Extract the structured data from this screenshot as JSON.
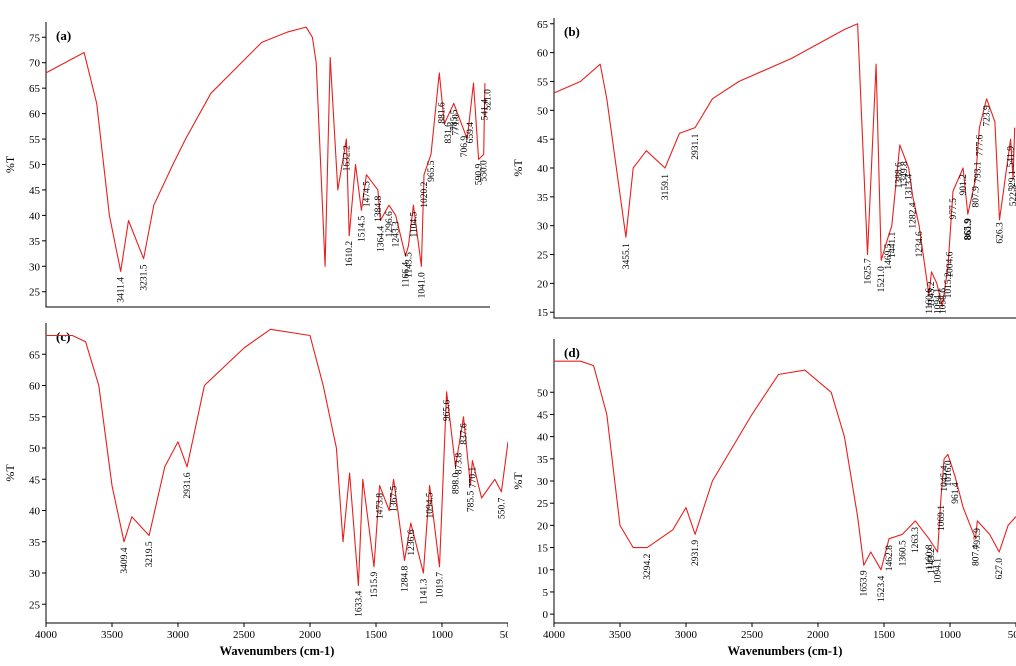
{
  "chart_data": [
    {
      "type": "line",
      "panel_label": "(a)",
      "ylabel": "%T",
      "xlabel": "",
      "xlim": [
        4000,
        500
      ],
      "ylim": [
        22,
        78
      ],
      "x_ticks": [],
      "y_ticks": [
        25,
        30,
        35,
        40,
        45,
        50,
        55,
        60,
        65,
        70,
        75
      ],
      "series": [
        {
          "x": [
            4000,
            3700,
            3600,
            3500,
            3411,
            3350,
            3231,
            3150,
            3000,
            2900,
            2700,
            2300,
            2100,
            1950,
            1900,
            1870,
            1800,
            1760,
            1700,
            1632,
            1610,
            1560,
            1514,
            1474,
            1384,
            1364,
            1296,
            1243,
            1166,
            1143,
            1104,
            1041,
            1020,
            965,
            900,
            860,
            785,
            680,
            630,
            590,
            550,
            540
          ],
          "y": [
            68,
            72,
            62,
            40,
            29,
            39,
            31.5,
            42,
            50,
            55,
            64,
            74,
            76,
            77,
            75,
            70,
            30,
            71,
            45,
            55,
            36,
            50,
            41,
            48,
            45,
            39,
            42,
            40,
            32,
            34,
            42,
            30,
            48,
            52,
            68,
            58,
            62,
            55,
            66,
            51,
            52,
            66
          ]
        }
      ],
      "peaks": [
        "3411.4",
        "3231.5",
        "1632.2",
        "1610.2",
        "1514.5",
        "1474.5",
        "1384.8",
        "1364.4",
        "1296.6",
        "1243.3",
        "1166.4",
        "1143.5",
        "1104.5",
        "1041.0",
        "1020.2",
        "965.5",
        "881.6",
        "831.6",
        "785.5",
        "771.0",
        "706.9",
        "659.4",
        "590.9",
        "550.0",
        "541.4",
        "521.0"
      ]
    },
    {
      "type": "line",
      "panel_label": "(b)",
      "ylabel": "%T",
      "xlabel": "",
      "xlim": [
        4000,
        500
      ],
      "ylim": [
        14,
        66
      ],
      "x_ticks": [],
      "y_ticks": [
        15,
        20,
        25,
        30,
        35,
        40,
        45,
        50,
        55,
        60,
        65
      ],
      "series": [
        {
          "x": [
            4000,
            3800,
            3650,
            3600,
            3455,
            3400,
            3300,
            3159,
            3050,
            2931,
            2800,
            2600,
            2200,
            1800,
            1700,
            1625,
            1560,
            1521,
            1469,
            1441,
            1380,
            1313,
            1282,
            1234,
            1160,
            1140,
            1100,
            1058,
            1015,
            977,
            901,
            865,
            807,
            777,
            723,
            660,
            625,
            541,
            522,
            510
          ],
          "y": [
            53,
            55,
            58,
            52,
            28,
            40,
            43,
            40,
            46,
            47,
            52,
            55,
            59,
            64,
            65,
            25,
            58,
            24,
            28,
            30,
            44,
            40,
            35,
            30,
            18,
            22,
            20,
            16,
            23,
            36,
            40,
            32,
            38,
            47,
            52,
            48,
            31,
            45,
            38,
            47
          ]
        }
      ],
      "peaks": [
        "3455.1",
        "3159.1",
        "2931.1",
        "1625.7",
        "1521.0",
        "1469.5",
        "1441.1",
        "1388.6",
        "1349.8",
        "1313.4",
        "1282.4",
        "1234.6",
        "1160.6",
        "1143.2",
        "1094.1",
        "1058.6",
        "1015.2",
        "1004.6",
        "977.5",
        "901.2",
        "865.9",
        "861.9",
        "807.9",
        "793.1",
        "777.6",
        "723.9",
        "626.3",
        "541.9",
        "522.3",
        "529.1"
      ]
    },
    {
      "type": "line",
      "panel_label": "(c)",
      "ylabel": "%T",
      "xlabel": "Wavenumbers (cm-1)",
      "xlim": [
        4000,
        500
      ],
      "ylim": [
        22,
        70
      ],
      "x_ticks": [
        4000,
        3500,
        3000,
        2500,
        2000,
        1500,
        1000,
        500
      ],
      "y_ticks": [
        25,
        30,
        35,
        40,
        45,
        50,
        55,
        60,
        65
      ],
      "series": [
        {
          "x": [
            4000,
            3800,
            3700,
            3600,
            3500,
            3409,
            3350,
            3219,
            3100,
            3000,
            2931,
            2800,
            2500,
            2300,
            2000,
            1900,
            1800,
            1750,
            1700,
            1633,
            1600,
            1515,
            1473,
            1400,
            1367,
            1284,
            1236,
            1141,
            1094,
            1019,
            965,
            898,
            837,
            785,
            770,
            700,
            600,
            550,
            500
          ],
          "y": [
            68,
            68,
            67,
            60,
            44,
            35,
            39,
            36,
            47,
            51,
            47,
            60,
            66,
            69,
            68,
            60,
            50,
            35,
            46,
            28,
            45,
            31,
            44,
            40,
            45,
            32,
            38,
            30,
            44,
            31,
            59,
            47,
            55,
            44,
            48,
            42,
            45,
            43,
            51
          ]
        }
      ],
      "peaks": [
        "3409.4",
        "3219.5",
        "2931.6",
        "1633.4",
        "1515.9",
        "1473.8",
        "1367.5",
        "1284.8",
        "1236.6",
        "1141.3",
        "1094.5",
        "1019.7",
        "965.6",
        "898.0",
        "873.8",
        "837.6",
        "785.5",
        "770.1",
        "550.7"
      ]
    },
    {
      "type": "line",
      "panel_label": "(d)",
      "ylabel": "%T",
      "xlabel": "Wavenumbers (cm-1)",
      "xlim": [
        4000,
        500
      ],
      "ylim": [
        -2,
        62
      ],
      "x_ticks": [
        4000,
        3500,
        3000,
        2500,
        2000,
        1500,
        1000,
        500
      ],
      "y_ticks": [
        0,
        5,
        10,
        15,
        20,
        25,
        30,
        35,
        40,
        45,
        50
      ],
      "series": [
        {
          "x": [
            4000,
            3800,
            3700,
            3600,
            3500,
            3400,
            3294,
            3100,
            3000,
            2931,
            2800,
            2500,
            2300,
            2100,
            1900,
            1800,
            1700,
            1653,
            1600,
            1523,
            1462,
            1360,
            1263,
            1160,
            1094,
            1069,
            1045,
            1016,
            961,
            900,
            807,
            793,
            700,
            627,
            560,
            500
          ],
          "y": [
            57,
            57,
            56,
            45,
            20,
            15,
            15,
            19,
            24,
            18,
            30,
            45,
            54,
            55,
            50,
            40,
            22,
            11,
            14,
            10,
            17,
            18,
            21,
            17,
            14,
            26,
            35,
            36,
            31,
            24,
            17,
            21,
            18,
            14,
            20,
            22
          ]
        }
      ],
      "peaks": [
        "3294.2",
        "2931.9",
        "1653.9",
        "1523.4",
        "1462.8",
        "1360.5",
        "1263.3",
        "1160.8",
        "1143.2",
        "1094.1",
        "1069.1",
        "1045.4",
        "1016.0",
        "961.4",
        "807.4",
        "793.9",
        "627.0"
      ]
    }
  ]
}
